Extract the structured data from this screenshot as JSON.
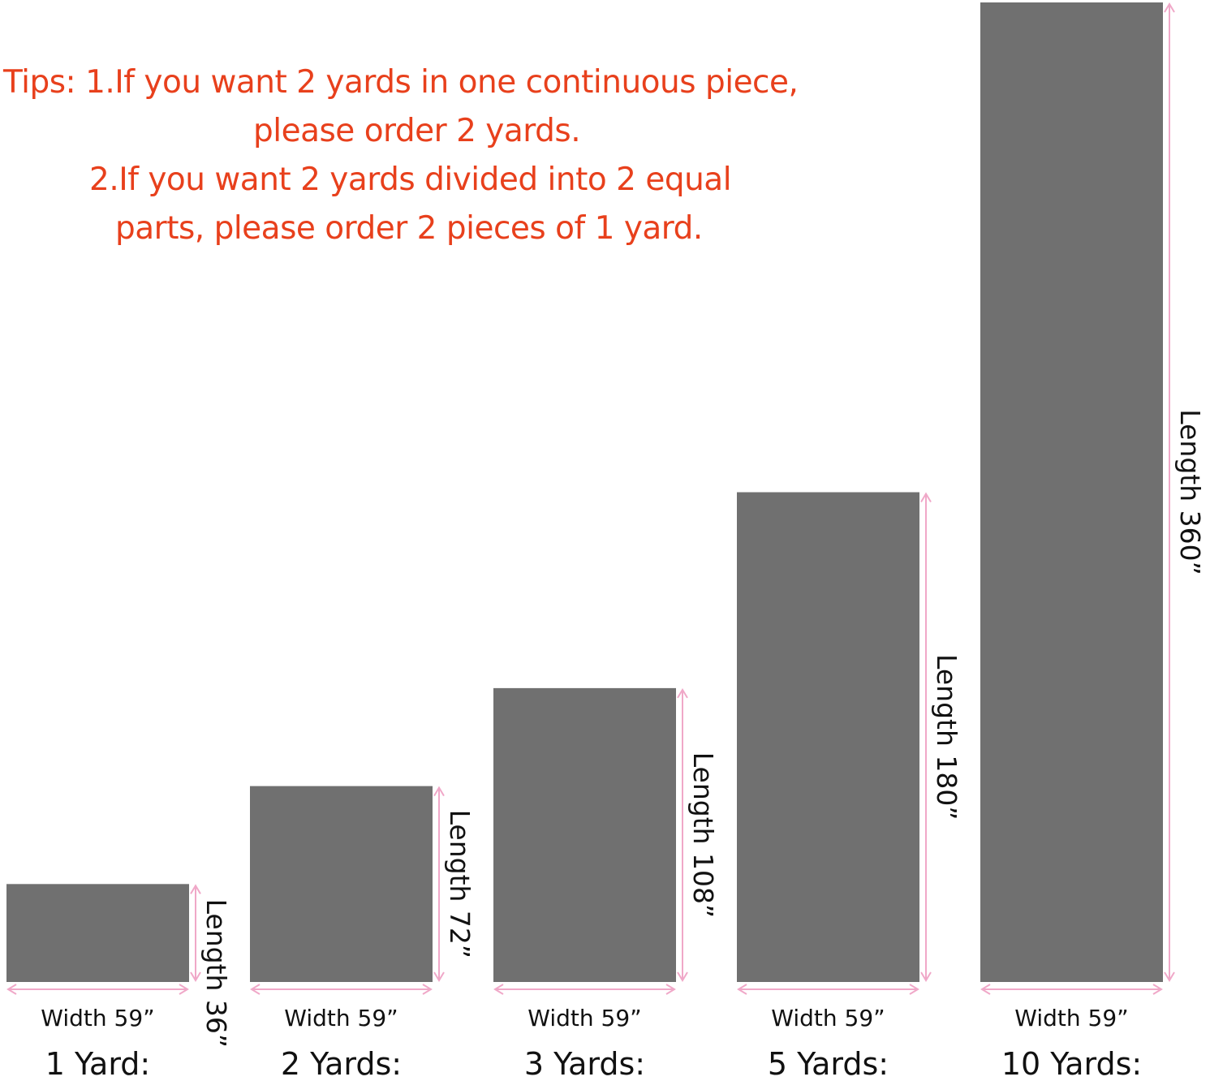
{
  "tips": {
    "line1": "Tips: 1.If you want 2 yards in one continuous piece,",
    "line2": "please order 2 yards.",
    "line3": "2.If you want 2 yards divided into 2 equal",
    "line4": "parts, please order 2 pieces of 1 yard."
  },
  "colors": {
    "tips_text": "#e8401c",
    "fabric": "#707070",
    "dimension_arrow": "#f0a8c8",
    "label_text": "#111111"
  },
  "chart_data": {
    "type": "bar",
    "categories": [
      "1 Yard:",
      "2 Yards:",
      "3 Yards:",
      "5 Yards:",
      "10 Yards:"
    ],
    "widths_inches": [
      59,
      59,
      59,
      59,
      59
    ],
    "lengths_inches": [
      36,
      72,
      108,
      180,
      360
    ],
    "width_labels": [
      "Width 59”",
      "Width 59”",
      "Width 59”",
      "Width 59”",
      "Width 59”"
    ],
    "length_labels": [
      "Length 36”",
      "Length 72”",
      "Length 108”",
      "Length 180”",
      "Length 360”"
    ]
  }
}
